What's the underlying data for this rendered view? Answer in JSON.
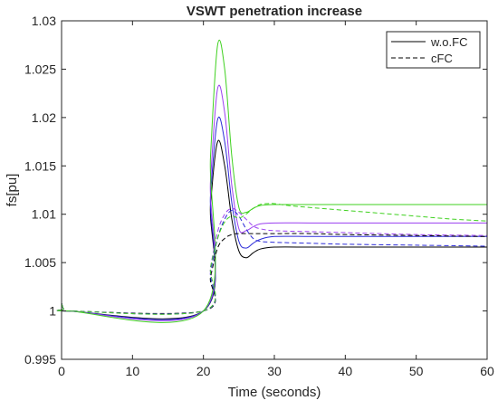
{
  "chart_data": {
    "type": "line",
    "title": "VSWT penetration increase",
    "xlabel": "Time (seconds)",
    "ylabel": "fs[pu]",
    "xlim": [
      0,
      60
    ],
    "ylim": [
      0.995,
      1.03
    ],
    "xticks": [
      0,
      10,
      20,
      30,
      40,
      50,
      60
    ],
    "yticks": [
      0.995,
      1,
      1.005,
      1.01,
      1.015,
      1.02,
      1.025,
      1.03
    ],
    "ytick_labels": [
      "0.995",
      "1",
      "1.005",
      "1.01",
      "1.015",
      "1.02",
      "1.025",
      "1.03"
    ],
    "grid": false,
    "legend": {
      "placement": "top-right",
      "entries": [
        {
          "label": "w.o.FC",
          "dash": "solid",
          "color": "#000000"
        },
        {
          "label": "cFC",
          "dash": "dashed",
          "color": "#000000"
        }
      ]
    },
    "series": [
      {
        "dash": "solid",
        "color": "#000000",
        "x": [
          0,
          0.3,
          1,
          20,
          21,
          22,
          23,
          24,
          25,
          26,
          27,
          28,
          30,
          35,
          40,
          60
        ],
        "y": [
          1.0008,
          1.0002,
          1.0,
          1.0,
          1.011,
          1.0175,
          1.015,
          1.0095,
          1.0062,
          1.0055,
          1.006,
          1.0064,
          1.0066,
          1.0066,
          1.0066,
          1.0066
        ]
      },
      {
        "dash": "solid",
        "color": "#2b2bd8",
        "x": [
          0,
          0.3,
          1,
          20,
          21,
          22,
          23,
          24,
          25,
          26,
          27,
          28,
          30,
          35,
          40,
          60
        ],
        "y": [
          1.0008,
          1.0002,
          1.0,
          1.0,
          1.012,
          1.0198,
          1.0175,
          1.0112,
          1.0072,
          1.0065,
          1.007,
          1.0074,
          1.0077,
          1.0077,
          1.0077,
          1.0077
        ]
      },
      {
        "dash": "solid",
        "color": "#9b3ff0",
        "x": [
          0,
          0.3,
          1,
          20,
          21,
          22,
          23,
          24,
          25,
          26,
          27,
          28,
          30,
          35,
          40,
          60
        ],
        "y": [
          1.0008,
          1.0002,
          1.0,
          1.0,
          1.0135,
          1.023,
          1.0205,
          1.013,
          1.0085,
          1.0083,
          1.0087,
          1.009,
          1.0091,
          1.0091,
          1.0091,
          1.0091
        ]
      },
      {
        "dash": "solid",
        "color": "#3fd11f",
        "x": [
          0,
          0.3,
          1,
          20,
          21,
          22,
          23,
          24,
          25,
          26,
          27,
          28,
          30,
          35,
          40,
          60
        ],
        "y": [
          1.0008,
          1.0002,
          1.0,
          1.0,
          1.016,
          1.0275,
          1.025,
          1.016,
          1.0107,
          1.0102,
          1.0106,
          1.0109,
          1.011,
          1.011,
          1.011,
          1.011
        ]
      },
      {
        "dash": "dashed",
        "color": "#000000",
        "x": [
          0,
          0.3,
          1,
          20,
          21,
          22,
          23,
          24,
          25,
          26,
          28,
          30,
          35,
          40,
          50,
          60
        ],
        "y": [
          1.0008,
          1.0002,
          1.0,
          1.0,
          1.0035,
          1.0065,
          1.0075,
          1.0079,
          1.008,
          1.008,
          1.008,
          1.008,
          1.008,
          1.0079,
          1.0078,
          1.0077
        ]
      },
      {
        "dash": "dashed",
        "color": "#2b2bd8",
        "x": [
          0,
          0.3,
          1,
          20,
          21,
          22,
          23,
          24,
          25,
          26,
          27,
          28,
          30,
          35,
          40,
          50,
          60
        ],
        "y": [
          1.0008,
          1.0002,
          1.0,
          1.0,
          1.004,
          1.0075,
          1.0095,
          1.0104,
          1.0098,
          1.0085,
          1.0075,
          1.0072,
          1.0071,
          1.007,
          1.0069,
          1.0068,
          1.0067
        ]
      },
      {
        "dash": "dashed",
        "color": "#9b3ff0",
        "x": [
          0,
          0.3,
          1,
          20,
          21,
          22,
          23,
          24,
          25,
          26,
          27,
          28,
          30,
          35,
          40,
          50,
          60
        ],
        "y": [
          1.0008,
          1.0002,
          1.0,
          1.0,
          1.0045,
          1.0082,
          1.01,
          1.0106,
          1.0102,
          1.0095,
          1.0088,
          1.0085,
          1.0083,
          1.0082,
          1.0081,
          1.0079,
          1.0078
        ]
      },
      {
        "dash": "dashed",
        "color": "#3fd11f",
        "x": [
          0,
          0.3,
          1,
          20,
          21,
          22,
          23,
          24,
          25,
          26,
          27,
          28,
          29,
          30,
          32,
          35,
          40,
          45,
          50,
          55,
          60
        ],
        "y": [
          1.0008,
          1.0002,
          1.0,
          1.0,
          1.0045,
          1.0075,
          1.0092,
          1.0098,
          1.0096,
          1.01,
          1.0106,
          1.011,
          1.0111,
          1.0111,
          1.0109,
          1.0107,
          1.0104,
          1.0101,
          1.0098,
          1.0095,
          1.0093
        ]
      }
    ]
  }
}
